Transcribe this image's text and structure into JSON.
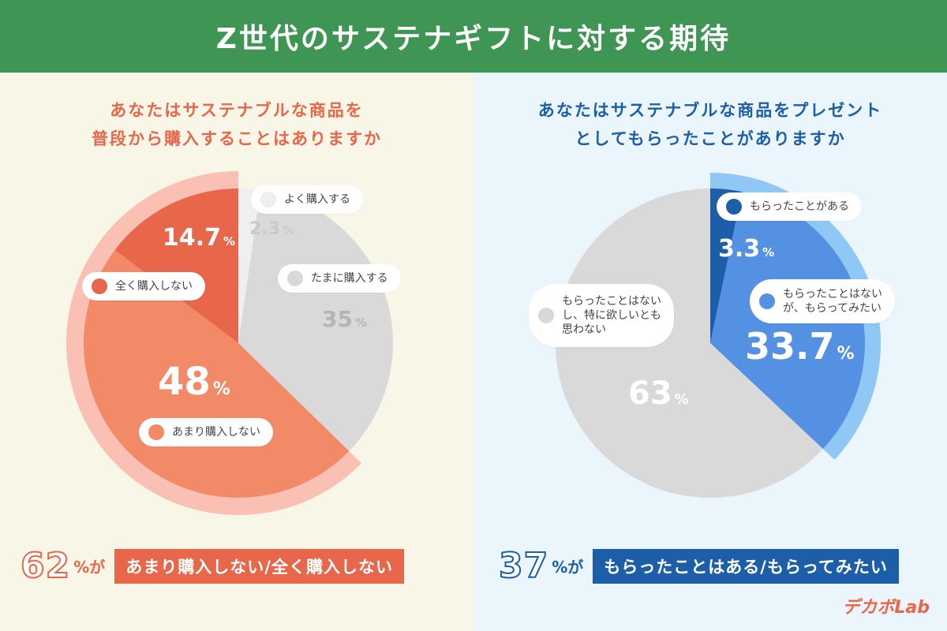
{
  "title": "Z世代のサステナギフトに対する期待",
  "brand": "デカボLab",
  "colors": {
    "header": "#3f9553",
    "left_accent": "#e8674a",
    "right_accent": "#1d5ea8"
  },
  "chart_data": [
    {
      "type": "pie",
      "title_lines": [
        "あなたはサステナブルな商品を",
        "普段から購入することはありますか"
      ],
      "slices": [
        {
          "label": "よく購入する",
          "value": 2.3,
          "value_text": "2.3",
          "color": "#efefef"
        },
        {
          "label": "たまに購入する",
          "value": 35,
          "value_text": "35",
          "color": "#d9d9d9"
        },
        {
          "label": "あまり購入しない",
          "value": 48,
          "value_text": "48",
          "color": "#f28a67"
        },
        {
          "label": "全く購入しない",
          "value": 14.7,
          "value_text": "14.7",
          "color": "#e8674a"
        }
      ],
      "highlight_ring_color": "#f9c0b3",
      "summary": {
        "value": "62",
        "suffix": "%が",
        "text": "あまり購入しない/全く購入しない"
      }
    },
    {
      "type": "pie",
      "title_lines": [
        "あなたはサステナブルな商品をプレゼント",
        "としてもらったことがありますか"
      ],
      "slices": [
        {
          "label": "もらったことがある",
          "value": 3.3,
          "value_text": "3.3",
          "color": "#1d5ea8"
        },
        {
          "label": "もらったことはないが、もらってみたい",
          "label_lines": [
            "もらったことはない",
            "が、もらってみたい"
          ],
          "value": 33.7,
          "value_text": "33.7",
          "color": "#5591e3"
        },
        {
          "label": "もらったことはないし、特に欲しいとも思わない",
          "label_lines": [
            "もらったことはない",
            "し、特に欲しいとも",
            "思わない"
          ],
          "value": 63,
          "value_text": "63",
          "color": "#d9d9d9"
        }
      ],
      "highlight_ring_color": "#8fc7f5",
      "summary": {
        "value": "37",
        "suffix": "%が",
        "text": "もらったことはある/もらってみたい"
      }
    }
  ]
}
